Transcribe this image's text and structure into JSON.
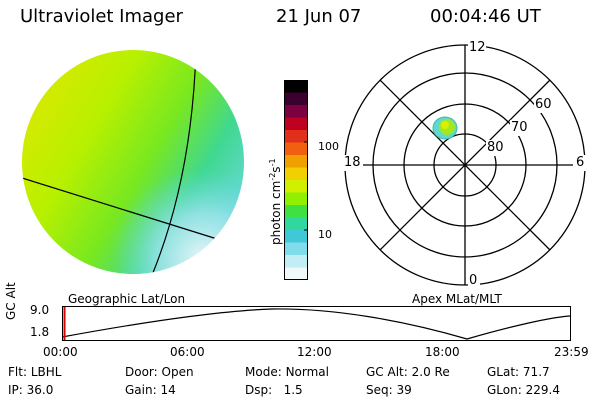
{
  "header": {
    "title": "Ultraviolet Imager",
    "date": "21 Jun 07",
    "time": "00:04:46 UT"
  },
  "panels": {
    "geographic_label": "Geographic Lat/Lon",
    "apex_label": "Apex MLat/MLT"
  },
  "colorbar": {
    "unit_main": "photon cm",
    "unit_exp1": "-2",
    "unit_mid": "s",
    "unit_exp2": "-1",
    "tick_100": "100",
    "tick_10": "10",
    "colors": [
      "#000000",
      "#3a0030",
      "#7a0040",
      "#c00020",
      "#e0301c",
      "#f06010",
      "#f0a000",
      "#f0d000",
      "#d0f000",
      "#90f000",
      "#40e040",
      "#30d8a0",
      "#40c8d8",
      "#80dce8",
      "#c0eef4",
      "#f0f8fa"
    ]
  },
  "polar": {
    "mlt_labels": {
      "top": "12",
      "left": "18",
      "right": "6",
      "bottom": "0"
    },
    "lat_labels": [
      "60",
      "70",
      "80"
    ]
  },
  "altitude_plot": {
    "axis_label": "GC Alt",
    "y_high": "9.0",
    "y_low": "1.8",
    "x_ticks": [
      "00:00",
      "06:00",
      "12:00",
      "18:00",
      "23:59"
    ],
    "current_time_fraction": 0.003
  },
  "status": {
    "filter_label": "Flt:",
    "filter_value": "LBHL",
    "door_label": "Door:",
    "door_value": "Open",
    "mode_label": "Mode:",
    "mode_value": "Normal",
    "gcalt_label": "GC Alt:",
    "gcalt_value": "2.0 Re",
    "glat_label": "GLat:",
    "glat_value": "71.7",
    "ip_label": "IP:",
    "ip_value": "36.0",
    "gain_label": "Gain:",
    "gain_value": "14",
    "dsp_label": "Dsp:",
    "dsp_value": "1.5",
    "seq_label": "Seq:",
    "seq_value": "39",
    "glon_label": "GLon:",
    "glon_value": "229.4"
  }
}
